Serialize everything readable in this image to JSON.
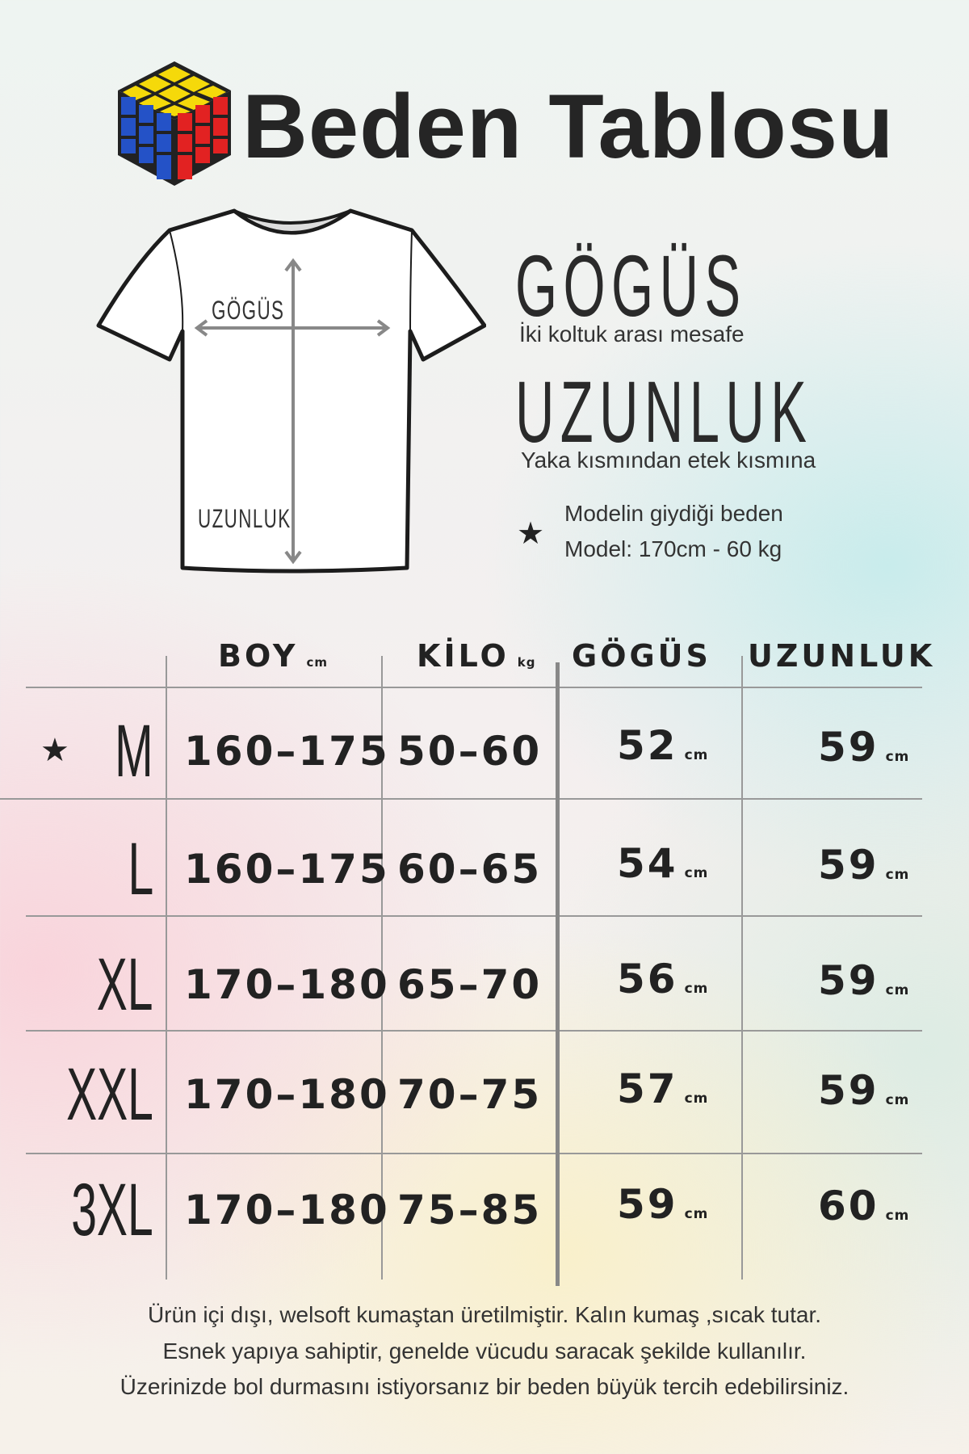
{
  "title": "Beden Tablosu",
  "logo": "rubiks-cube",
  "diagram": {
    "chest_label": "GÖGÜS",
    "length_label": "UZUNLUK"
  },
  "legend": {
    "chest_title": "GÖGÜS",
    "chest_desc": "İki koltuk arası mesafe",
    "length_title": "UZUNLUK",
    "length_desc": "Yaka kısmından etek kısmına",
    "model_line1": "Modelin giydiği beden",
    "model_line2": "Model: 170cm - 60 kg"
  },
  "table": {
    "headers": [
      {
        "label": "BOY",
        "unit": "cm"
      },
      {
        "label": "KİLO",
        "unit": "kg"
      },
      {
        "label": "GÖGÜS",
        "unit": ""
      },
      {
        "label": "UZUNLUK",
        "unit": ""
      }
    ],
    "rows": [
      {
        "size": "M",
        "model": true,
        "boy": "160–175",
        "kilo": "50–60",
        "gogus": "52",
        "uzunluk": "59",
        "unit": "cm"
      },
      {
        "size": "L",
        "model": false,
        "boy": "160–175",
        "kilo": "60–65",
        "gogus": "54",
        "uzunluk": "59",
        "unit": "cm"
      },
      {
        "size": "XL",
        "model": false,
        "boy": "170–180",
        "kilo": "65–70",
        "gogus": "56",
        "uzunluk": "59",
        "unit": "cm"
      },
      {
        "size": "XXL",
        "model": false,
        "boy": "170–180",
        "kilo": "70–75",
        "gogus": "57",
        "uzunluk": "59",
        "unit": "cm"
      },
      {
        "size": "3XL",
        "model": false,
        "boy": "170–180",
        "kilo": "75–85",
        "gogus": "59",
        "uzunluk": "60",
        "unit": "cm"
      }
    ]
  },
  "footer": [
    "Ürün içi dışı, welsoft kumaştan üretilmiştir. Kalın kumaş ,sıcak tutar.",
    "Esnek yapıya sahiptir, genelde vücudu saracak şekilde kullanılır.",
    "Üzerinizde bol durmasını istiyorsanız bir beden büyük tercih edebilirsiniz."
  ]
}
